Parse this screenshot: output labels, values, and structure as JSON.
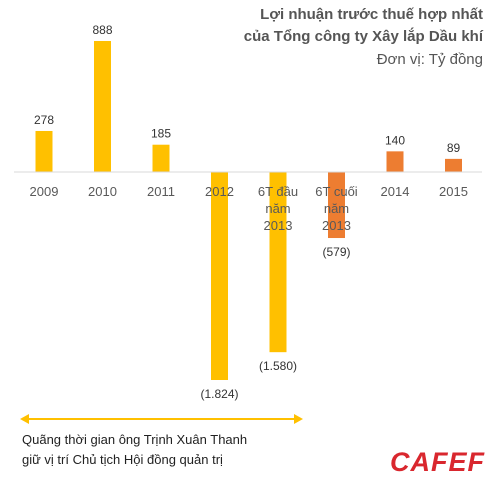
{
  "title_line1": "Lợi nhuận trước thuế hợp nhất",
  "title_line2": "của Tổng công ty Xây lắp Dầu khí",
  "unit": "Đơn vị: Tỷ đồng",
  "note_line1": "Quãng thời gian ông Trịnh Xuân Thanh",
  "note_line2": "giữ vị trí Chủ tịch Hội đồng quản trị",
  "logo": {
    "text": "CAFEF",
    "color": "#d9272e"
  },
  "colors": {
    "yellow": "#ffc000",
    "orange": "#ed7d31",
    "axis": "#d9d9d9",
    "label": "#595959"
  },
  "chart_data": {
    "type": "bar",
    "categories": [
      [
        "2009"
      ],
      [
        "2010"
      ],
      [
        "2011"
      ],
      [
        "2012"
      ],
      [
        "6T đầu",
        "năm",
        "2013"
      ],
      [
        "6T cuối",
        "năm",
        "2013"
      ],
      [
        "2014"
      ],
      [
        "2015"
      ]
    ],
    "values": [
      278,
      888,
      185,
      -1824,
      -1580,
      -579,
      140,
      89
    ],
    "value_labels": [
      "278",
      "888",
      "185",
      "(1.824)",
      "(1.580)",
      "(579)",
      "140",
      "89"
    ],
    "bar_colors": [
      "yellow",
      "yellow",
      "yellow",
      "yellow",
      "yellow",
      "orange",
      "orange",
      "orange"
    ],
    "ylim": [
      -1824,
      888
    ]
  }
}
